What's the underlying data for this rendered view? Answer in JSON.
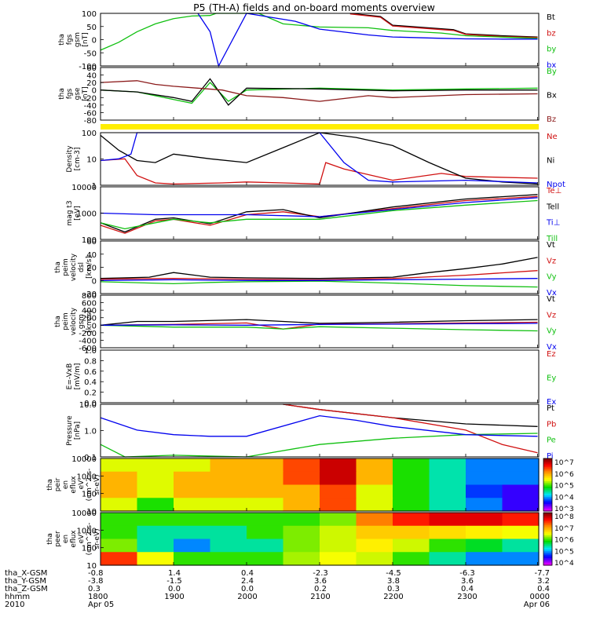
{
  "title": "P5 (TH-A) fields and on-board moments overview",
  "chart_data": [
    {
      "type": "line",
      "ylabel": [
        "tha",
        "fgs",
        "gsm",
        "[nT]"
      ],
      "yticks": [
        "100",
        "50",
        "0",
        "-50",
        "-100"
      ],
      "ylim": [
        -100,
        100
      ],
      "series": [
        {
          "name": "Bt",
          "color": "#000000",
          "x": [
            2125,
            2150,
            2200,
            2250,
            2300,
            2330,
            2359
          ],
          "y": [
            100,
            88,
            55,
            38,
            22,
            15,
            10
          ]
        },
        {
          "name": "bz",
          "color": "#d01010",
          "x": [
            2125,
            2150,
            2200,
            2250,
            2300,
            2330,
            2359
          ],
          "y": [
            98,
            85,
            52,
            35,
            20,
            12,
            8
          ]
        },
        {
          "name": "by",
          "color": "#10c010",
          "x": [
            1800,
            1815,
            1830,
            1845,
            1900,
            1915,
            1930,
            1935,
            2010,
            2030,
            2100,
            2140,
            2200,
            2240,
            2300,
            2340,
            2359
          ],
          "y": [
            -40,
            -10,
            30,
            60,
            80,
            90,
            92,
            100,
            100,
            60,
            48,
            45,
            35,
            25,
            15,
            8,
            5
          ]
        },
        {
          "name": "bx",
          "color": "#0000ee",
          "x": [
            1920,
            1930,
            1937,
            2000,
            2040,
            2100,
            2140,
            2200,
            2240,
            2300,
            2330,
            2359
          ],
          "y": [
            100,
            30,
            -100,
            100,
            70,
            40,
            18,
            10,
            5,
            3,
            2,
            2
          ]
        }
      ]
    },
    {
      "type": "line",
      "ylabel": [
        "tha",
        "fgs",
        "gse",
        "[nT]"
      ],
      "yticks": [
        "60",
        "40",
        "20",
        "0",
        "-20",
        "-40",
        "-60",
        "-80"
      ],
      "ylim": [
        -80,
        60
      ],
      "series": [
        {
          "name": "By",
          "color": "#10c010",
          "x": [
            1800,
            1830,
            1900,
            1915,
            1930,
            1945,
            2000,
            2100,
            2200,
            2300,
            2359
          ],
          "y": [
            0,
            -5,
            -25,
            -35,
            20,
            -30,
            0,
            5,
            0,
            3,
            5
          ]
        },
        {
          "name": "Bx",
          "color": "#000000",
          "x": [
            1800,
            1830,
            1900,
            1915,
            1930,
            1945,
            2000,
            2100,
            2200,
            2300,
            2359
          ],
          "y": [
            0,
            -5,
            -20,
            -30,
            30,
            -40,
            5,
            3,
            -2,
            0,
            0
          ]
        },
        {
          "name": "Bz",
          "color": "#8b1a1a",
          "x": [
            1800,
            1830,
            1845,
            1900,
            1920,
            1940,
            2000,
            2030,
            2100,
            2140,
            2200,
            2300,
            2359
          ],
          "y": [
            20,
            25,
            15,
            10,
            5,
            0,
            -15,
            -20,
            -30,
            -15,
            -20,
            -12,
            -10
          ]
        }
      ]
    },
    {
      "type": "line",
      "ylabel": [
        "Density",
        "[cm-3]"
      ],
      "log": true,
      "yticks": [
        "100",
        "10",
        "1"
      ],
      "ylim": [
        0.7,
        200
      ],
      "series": [
        {
          "name": "Ne",
          "color": "#d01010",
          "x": [
            1800,
            1820,
            1830,
            1845,
            1900,
            1940,
            2000,
            2030,
            2100,
            2105,
            2120,
            2200,
            2240,
            2300,
            2359
          ],
          "y": [
            10,
            12,
            2,
            0.9,
            0.8,
            0.9,
            1.0,
            0.9,
            0.8,
            8,
            4,
            1.2,
            2.5,
            1.8,
            1.5
          ]
        },
        {
          "name": "Ni",
          "color": "#000000",
          "x": [
            1800,
            1815,
            1830,
            1845,
            1900,
            1930,
            2000,
            2030,
            2100,
            2130,
            2200,
            2230,
            2300,
            2330,
            2359
          ],
          "y": [
            150,
            30,
            10,
            8,
            20,
            12,
            8,
            40,
            200,
            120,
            50,
            8,
            1.5,
            1.0,
            0.8
          ]
        },
        {
          "name": "Npot",
          "color": "#0000ee",
          "x": [
            1800,
            1815,
            1825,
            1830,
            2100,
            2120,
            2140,
            2200,
            2300,
            2359
          ],
          "y": [
            10,
            12,
            20,
            200,
            200,
            8,
            1.2,
            1.0,
            1.2,
            0.9
          ]
        }
      ]
    },
    {
      "type": "line",
      "ylabel": [
        "mag t3",
        "[eV]"
      ],
      "log": true,
      "yticks": [
        "10000",
        "1000",
        "100"
      ],
      "ylim": [
        30,
        12000
      ],
      "series": [
        {
          "name": "Te⊥",
          "color": "#d01010",
          "x": [
            1800,
            1820,
            1845,
            1900,
            1930,
            2000,
            2030,
            2100,
            2200,
            2300,
            2359
          ],
          "y": [
            150,
            60,
            250,
            300,
            150,
            500,
            700,
            400,
            1000,
            2500,
            4000
          ]
        },
        {
          "name": "Tell",
          "color": "#000000",
          "x": [
            1800,
            1820,
            1845,
            1900,
            1930,
            2000,
            2030,
            2100,
            2200,
            2300,
            2359
          ],
          "y": [
            200,
            70,
            300,
            350,
            180,
            700,
            900,
            350,
            1200,
            3000,
            5000
          ]
        },
        {
          "name": "Ti⊥",
          "color": "#0000ee",
          "x": [
            1800,
            1845,
            1900,
            2000,
            2100,
            2200,
            2300,
            2359
          ],
          "y": [
            600,
            500,
            500,
            500,
            400,
            900,
            2000,
            3500
          ]
        },
        {
          "name": "Till",
          "color": "#10c010",
          "x": [
            1800,
            1820,
            1845,
            1900,
            1930,
            2000,
            2100,
            2200,
            2300,
            2359
          ],
          "y": [
            200,
            100,
            200,
            300,
            200,
            300,
            300,
            800,
            1500,
            2500
          ]
        }
      ]
    },
    {
      "type": "line",
      "ylabel": [
        "tha",
        "peim",
        "velocity",
        "dsl",
        "[km/s]"
      ],
      "yticks": [
        "60",
        "40",
        "20",
        "0",
        "-20"
      ],
      "ylim": [
        -20,
        60
      ],
      "series": [
        {
          "name": "Vt",
          "color": "#000000",
          "x": [
            1800,
            1840,
            1900,
            1930,
            2000,
            2100,
            2200,
            2230,
            2300,
            2330,
            2359
          ],
          "y": [
            3,
            5,
            12,
            5,
            4,
            3,
            5,
            12,
            18,
            25,
            35
          ]
        },
        {
          "name": "Vz",
          "color": "#d01010",
          "x": [
            1800,
            1900,
            2000,
            2100,
            2200,
            2300,
            2359
          ],
          "y": [
            2,
            3,
            2,
            1,
            3,
            8,
            15
          ]
        },
        {
          "name": "Vy",
          "color": "#10c010",
          "x": [
            1800,
            1900,
            1930,
            2000,
            2100,
            2200,
            2300,
            2359
          ],
          "y": [
            -2,
            -5,
            -3,
            -2,
            -1,
            -4,
            -8,
            -10
          ]
        },
        {
          "name": "Vx",
          "color": "#0000ee",
          "x": [
            1800,
            1900,
            2000,
            2100,
            2200,
            2300,
            2359
          ],
          "y": [
            0,
            1,
            0,
            0,
            1,
            2,
            3
          ]
        }
      ]
    },
    {
      "type": "line",
      "ylabel": [
        "tha",
        "peim",
        "velocity",
        "gsm",
        "[km/s]"
      ],
      "yticks": [
        "800",
        "600",
        "400",
        "200",
        "0",
        "-200",
        "-400",
        "-600"
      ],
      "ylim": [
        -600,
        800
      ],
      "series": [
        {
          "name": "Vt",
          "color": "#000000",
          "x": [
            1800,
            1830,
            1900,
            2000,
            2030,
            2100,
            2200,
            2300,
            2359
          ],
          "y": [
            0,
            100,
            100,
            150,
            100,
            50,
            80,
            120,
            150
          ]
        },
        {
          "name": "Vz",
          "color": "#d01010",
          "x": [
            1800,
            1900,
            2000,
            2030,
            2100,
            2200,
            2300,
            2359
          ],
          "y": [
            0,
            20,
            60,
            -100,
            30,
            40,
            60,
            80
          ]
        },
        {
          "name": "Vy",
          "color": "#10c010",
          "x": [
            1800,
            1900,
            2000,
            2030,
            2100,
            2200,
            2300,
            2359
          ],
          "y": [
            0,
            -50,
            -50,
            -100,
            -40,
            -80,
            -120,
            -150
          ]
        },
        {
          "name": "Vx",
          "color": "#0000ee",
          "x": [
            1800,
            1900,
            2000,
            2100,
            2200,
            2300,
            2359
          ],
          "y": [
            0,
            10,
            0,
            20,
            30,
            40,
            50
          ]
        }
      ]
    },
    {
      "type": "line",
      "ylabel": [
        "E=-VxB",
        "[mV/m]"
      ],
      "yticks": [
        "1.0",
        "0.8",
        "0.6",
        "0.4",
        "0.2",
        "0.0"
      ],
      "ylim": [
        0,
        1
      ],
      "series": [
        {
          "name": "Ez",
          "color": "#d01010",
          "x": [],
          "y": []
        },
        {
          "name": "Ey",
          "color": "#10c010",
          "x": [],
          "y": []
        },
        {
          "name": "Ex",
          "color": "#0000ee",
          "x": [],
          "y": []
        }
      ]
    },
    {
      "type": "line",
      "ylabel": [
        "Pressure",
        "[nPa]"
      ],
      "log": true,
      "yticks": [
        "10.0",
        "1.0",
        "0.1"
      ],
      "ylim": [
        0.05,
        18
      ],
      "series": [
        {
          "name": "Pt",
          "color": "#000000",
          "x": [
            2030,
            2100,
            2200,
            2300,
            2359
          ],
          "y": [
            18,
            10,
            4,
            2,
            1.5
          ]
        },
        {
          "name": "Pb",
          "color": "#d01010",
          "x": [
            2030,
            2100,
            2200,
            2300,
            2330,
            2359
          ],
          "y": [
            18,
            10,
            4,
            1,
            0.2,
            0.08
          ]
        },
        {
          "name": "Pe",
          "color": "#10c010",
          "x": [
            1800,
            1820,
            1900,
            2000,
            2100,
            2200,
            2300,
            2359
          ],
          "y": [
            0.2,
            0.05,
            0.06,
            0.05,
            0.2,
            0.4,
            0.6,
            0.7
          ]
        },
        {
          "name": "Pi",
          "color": "#0000ee",
          "x": [
            1800,
            1830,
            1900,
            1930,
            2000,
            2100,
            2130,
            2200,
            2300,
            2359
          ],
          "y": [
            4,
            1,
            0.6,
            0.5,
            0.5,
            5,
            3,
            1.5,
            0.6,
            0.5
          ]
        }
      ]
    },
    {
      "type": "heatmap",
      "ylabel": [
        "tha",
        "peir",
        "en",
        "eflux",
        "eV",
        "(cm^2-s-",
        "sr-eV)"
      ],
      "yticks": [
        "10000",
        "1000",
        "100",
        "10"
      ],
      "colorbar_labels": [
        "10^7",
        "10^6",
        "10^5",
        "10^4",
        "10^3"
      ],
      "time_hhmm": [
        "1800",
        "1830",
        "1900",
        "1930",
        "2000",
        "2030",
        "2100",
        "2130",
        "2200",
        "2230",
        "2300",
        "2330"
      ],
      "log_eflux_rows_high_to_low": [
        [
          5.5,
          5.5,
          5.5,
          6.0,
          6.0,
          6.5,
          7.0,
          6.0,
          5.0,
          4.5,
          4.0,
          4.0
        ],
        [
          6.0,
          5.5,
          6.0,
          6.0,
          6.0,
          6.5,
          7.0,
          6.0,
          5.0,
          4.5,
          4.0,
          4.0
        ],
        [
          6.0,
          5.5,
          6.0,
          6.0,
          6.0,
          6.0,
          6.5,
          5.5,
          5.0,
          4.5,
          3.8,
          3.5
        ],
        [
          5.5,
          5.0,
          5.5,
          5.5,
          5.5,
          6.0,
          6.5,
          5.5,
          5.0,
          4.5,
          4.0,
          3.5
        ]
      ]
    },
    {
      "type": "heatmap",
      "ylabel": [
        "tha",
        "peer",
        "en",
        "eflux",
        "eV",
        "(cm^2-s-",
        "sr-eV)"
      ],
      "yticks": [
        "10000",
        "1000",
        "100",
        "10"
      ],
      "colorbar_labels": [
        "10^8",
        "10^7",
        "10^6",
        "10^5",
        "10^4"
      ],
      "time_hhmm": [
        "1800",
        "1830",
        "1900",
        "1930",
        "2000",
        "2030",
        "2100",
        "2130",
        "2200",
        "2230",
        "2300",
        "2330"
      ],
      "log_eflux_rows_high_to_low": [
        [
          6.0,
          6.0,
          6.0,
          6.0,
          6.0,
          6.0,
          6.2,
          7.2,
          7.6,
          7.8,
          7.8,
          7.6
        ],
        [
          6.0,
          5.5,
          5.5,
          5.5,
          6.0,
          6.2,
          6.4,
          6.8,
          6.8,
          6.7,
          6.6,
          6.5
        ],
        [
          6.2,
          5.5,
          5.0,
          5.5,
          5.5,
          6.2,
          6.4,
          6.6,
          6.4,
          6.0,
          5.8,
          5.5
        ],
        [
          7.5,
          6.5,
          6.0,
          6.0,
          6.0,
          6.3,
          6.5,
          6.4,
          6.0,
          5.5,
          5.0,
          5.0
        ]
      ]
    }
  ],
  "ephemeris": {
    "labels": [
      "tha_X-GSM",
      "tha_Y-GSM",
      "tha_Z-GSM",
      "hhmm",
      "2010"
    ],
    "columns": [
      [
        "-0.8",
        "-3.8",
        "0.3",
        "1800",
        "Apr 05"
      ],
      [
        "1.4",
        "-1.5",
        "0.0",
        "1900",
        ""
      ],
      [
        "0.4",
        "2.4",
        "0.0",
        "2000",
        ""
      ],
      [
        "-2.3",
        "3.6",
        "0.2",
        "2100",
        ""
      ],
      [
        "-4.5",
        "3.8",
        "0.3",
        "2200",
        ""
      ],
      [
        "-6.3",
        "3.6",
        "0.4",
        "2300",
        ""
      ],
      [
        "-7.7",
        "3.2",
        "0.4",
        "0000",
        "Apr 06"
      ]
    ]
  }
}
